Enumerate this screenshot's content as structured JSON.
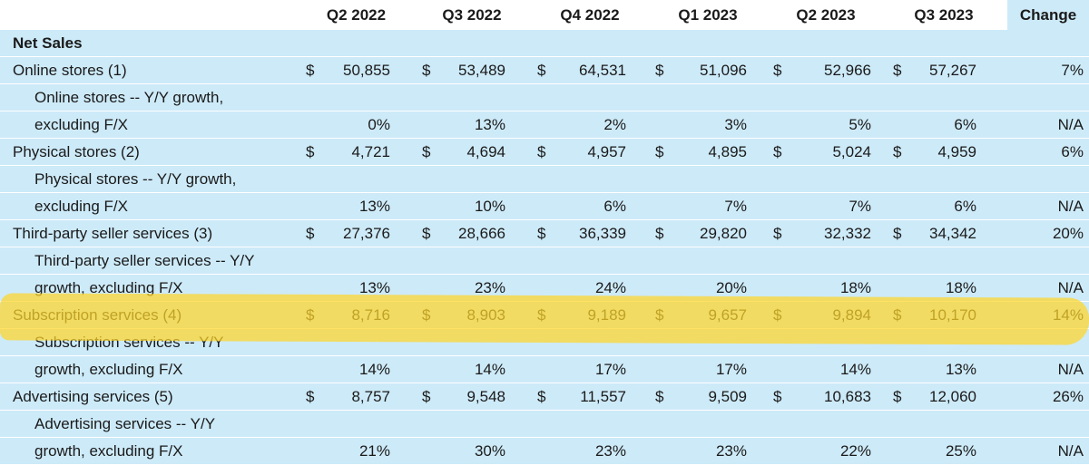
{
  "header": {
    "columns": [
      "Q2 2022",
      "Q3 2022",
      "Q4 2022",
      "Q1 2023",
      "Q2 2023",
      "Q3 2023"
    ],
    "change": "Change"
  },
  "section_title": "Net Sales",
  "rows": [
    {
      "label": "Online stores (1)",
      "dollar": true,
      "values": [
        "50,855",
        "53,489",
        "64,531",
        "51,096",
        "52,966",
        "57,267"
      ],
      "change": "7%"
    },
    {
      "label": "Online stores -- Y/Y growth,",
      "indent": true
    },
    {
      "label": "excluding F/X",
      "indent": true,
      "values": [
        "0%",
        "13%",
        "2%",
        "3%",
        "5%",
        "6%"
      ],
      "change": "N/A"
    },
    {
      "label": "Physical stores (2)",
      "dollar": true,
      "values": [
        "4,721",
        "4,694",
        "4,957",
        "4,895",
        "5,024",
        "4,959"
      ],
      "change": "6%"
    },
    {
      "label": "Physical stores -- Y/Y growth,",
      "indent": true
    },
    {
      "label": "excluding F/X",
      "indent": true,
      "values": [
        "13%",
        "10%",
        "6%",
        "7%",
        "7%",
        "6%"
      ],
      "change": "N/A"
    },
    {
      "label": "Third-party seller services (3)",
      "dollar": true,
      "values": [
        "27,376",
        "28,666",
        "36,339",
        "29,820",
        "32,332",
        "34,342"
      ],
      "change": "20%"
    },
    {
      "label": "Third-party seller services -- Y/Y",
      "indent": true
    },
    {
      "label": "growth, excluding F/X",
      "indent": true,
      "values": [
        "13%",
        "23%",
        "24%",
        "20%",
        "18%",
        "18%"
      ],
      "change": "N/A"
    },
    {
      "label": "Subscription services (4)",
      "dollar": true,
      "values": [
        "8,716",
        "8,903",
        "9,189",
        "9,657",
        "9,894",
        "10,170"
      ],
      "change": "14%"
    },
    {
      "label": "Subscription services -- Y/Y",
      "indent": true
    },
    {
      "label": "growth, excluding F/X",
      "indent": true,
      "values": [
        "14%",
        "14%",
        "17%",
        "17%",
        "14%",
        "13%"
      ],
      "change": "N/A"
    },
    {
      "label": "Advertising services (5)",
      "dollar": true,
      "values": [
        "8,757",
        "9,548",
        "11,557",
        "9,509",
        "10,683",
        "12,060"
      ],
      "change": "26%"
    },
    {
      "label": "Advertising services -- Y/Y",
      "indent": true
    },
    {
      "label": "growth, excluding F/X",
      "indent": true,
      "values": [
        "21%",
        "30%",
        "23%",
        "23%",
        "22%",
        "25%"
      ],
      "change": "N/A"
    }
  ],
  "dollar_sign": "$",
  "colors": {
    "row_background": "#cdeaf8",
    "highlight": "#ffd628"
  }
}
